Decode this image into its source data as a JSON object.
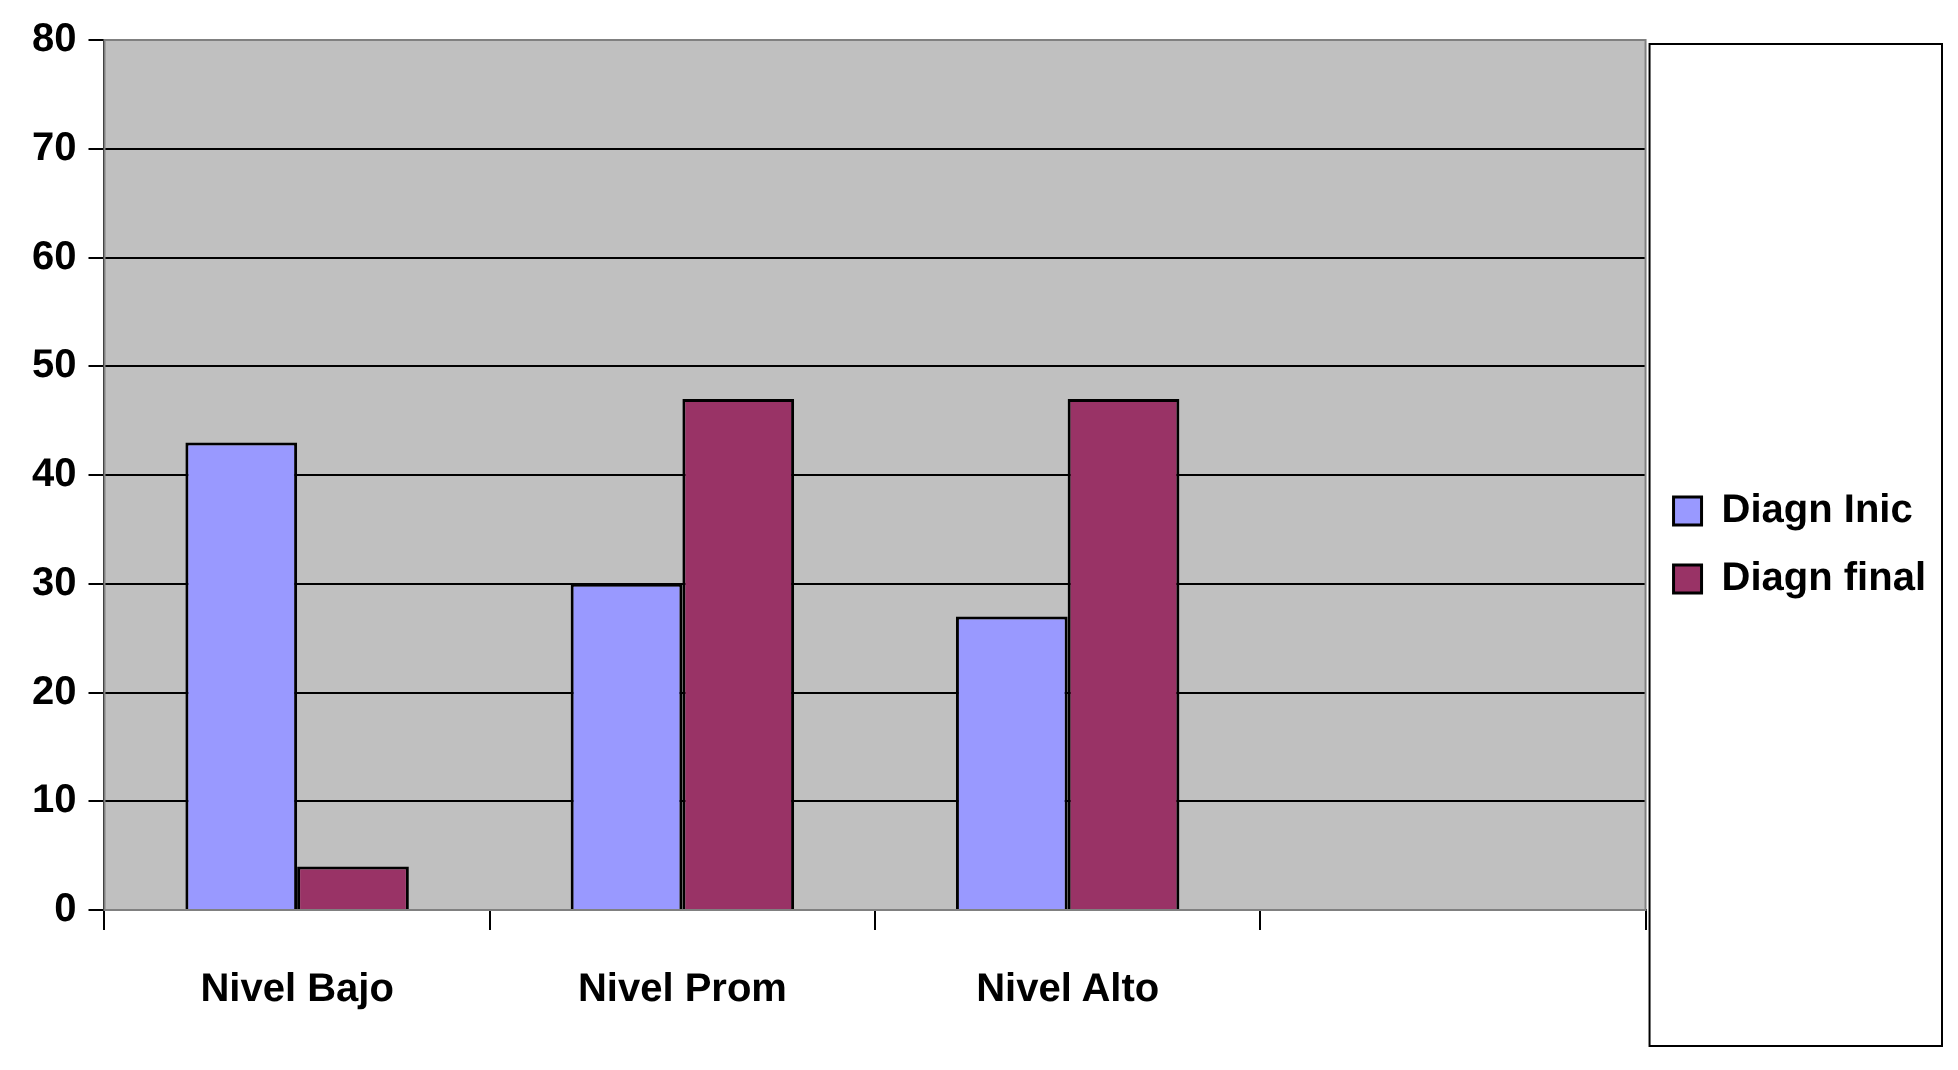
{
  "chart_data": {
    "type": "bar",
    "categories": [
      "Nivel Bajo",
      "Nivel Prom",
      "Nivel Alto",
      null
    ],
    "series": [
      {
        "name": "Diagn Inic",
        "color": "#9999ff",
        "values": [
          43,
          30,
          27,
          null
        ]
      },
      {
        "name": "Diagn final",
        "color": "#993366",
        "values": [
          4,
          47,
          47,
          null
        ]
      }
    ],
    "ylim": [
      0,
      80
    ],
    "yticks": [
      0,
      10,
      20,
      30,
      40,
      50,
      60,
      70,
      80
    ],
    "grid": "y",
    "legend": "right"
  }
}
